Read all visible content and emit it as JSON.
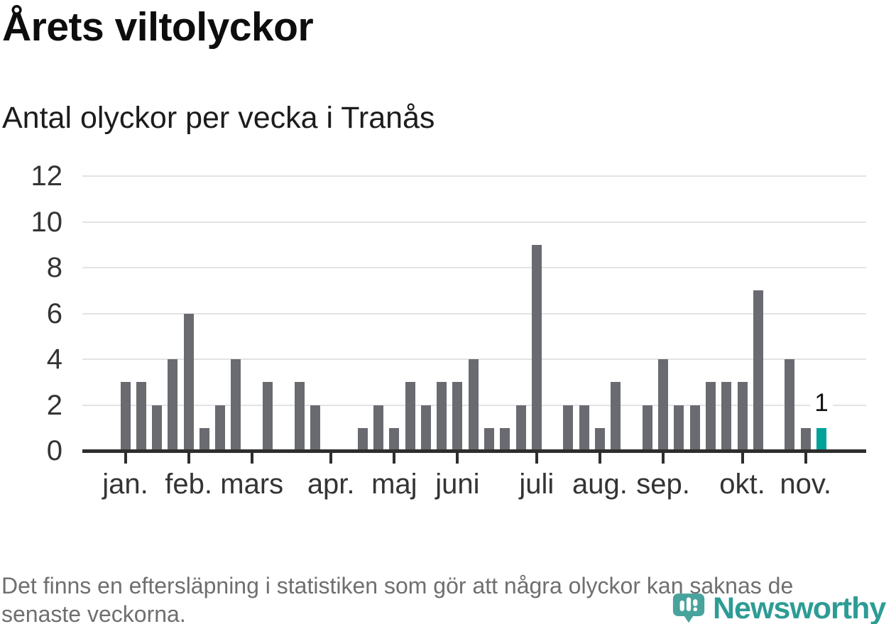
{
  "header": {
    "title": "Årets viltolyckor",
    "subtitle": "Antal olyckor per vecka i Tranås"
  },
  "chart_data": {
    "type": "bar",
    "title": "Årets viltolyckor",
    "subtitle": "Antal olyckor per vecka i Tranås",
    "x_unit": "vecka",
    "values": [
      3,
      3,
      2,
      4,
      6,
      1,
      2,
      4,
      0,
      3,
      0,
      3,
      2,
      0,
      0,
      1,
      2,
      1,
      3,
      2,
      3,
      3,
      4,
      1,
      1,
      2,
      9,
      0,
      2,
      2,
      1,
      3,
      0,
      2,
      4,
      2,
      2,
      3,
      3,
      3,
      7,
      0,
      4,
      1,
      1
    ],
    "x_month_ticks": [
      {
        "label": "jan.",
        "week": 0
      },
      {
        "label": "feb.",
        "week": 4
      },
      {
        "label": "mars",
        "week": 8
      },
      {
        "label": "apr.",
        "week": 13
      },
      {
        "label": "maj",
        "week": 17
      },
      {
        "label": "juni",
        "week": 21
      },
      {
        "label": "juli",
        "week": 26
      },
      {
        "label": "aug.",
        "week": 30
      },
      {
        "label": "sep.",
        "week": 34
      },
      {
        "label": "okt.",
        "week": 39
      },
      {
        "label": "nov.",
        "week": 43
      }
    ],
    "y_ticks": [
      0,
      2,
      4,
      6,
      8,
      10,
      12
    ],
    "ylim": [
      0,
      12
    ],
    "grid": true,
    "legend": "none",
    "highlight_last_bar": true,
    "annotation": {
      "bar_index": 44,
      "text": "1"
    },
    "colors": {
      "bar": "#6a6a71",
      "highlight": "#00a29a",
      "grid": "#e3e3e3",
      "axis": "#2e2e2e",
      "tick_label": "#343434"
    }
  },
  "footer": {
    "note_lines": [
      "Det finns en eftersläpning i statistiken som gör att några olyckor kan saknas de",
      "senaste veckorna."
    ]
  },
  "logo": {
    "text": "Newsworthy",
    "icon": "bar-chart-pin-icon",
    "pin_color": "#48a39c",
    "text_color": "#2d9c95"
  }
}
